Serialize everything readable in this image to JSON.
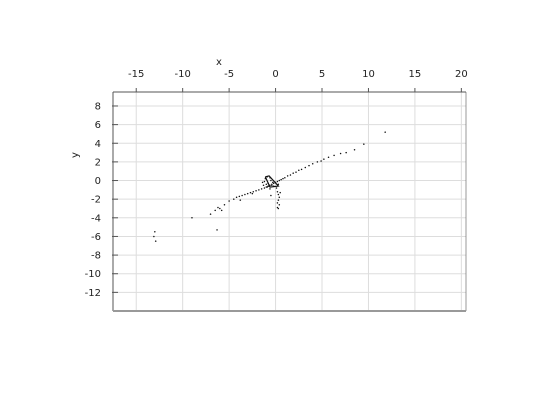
{
  "chart_data": {
    "type": "scatter",
    "title": "",
    "xlabel": "x",
    "ylabel": "y",
    "xlim": [
      -17.5,
      20.5
    ],
    "ylim": [
      -14,
      9.5
    ],
    "grid": true,
    "legend": "none",
    "x_ticks": [
      -15,
      -10,
      -5,
      0,
      5,
      10,
      15,
      20
    ],
    "x_tick_labels": [
      "-15",
      "-10",
      "-5",
      "0",
      "5",
      "10",
      "15",
      "20"
    ],
    "y_ticks": [
      8,
      6,
      4,
      2,
      0,
      -2,
      -4,
      -6,
      -8,
      -10,
      -12
    ],
    "y_tick_labels": [
      "8",
      "6",
      "4",
      "2",
      "0",
      "-2",
      "-4",
      "-6",
      "-8",
      "-10",
      "-12"
    ],
    "x_axis_position": "top",
    "colors": {
      "points": "#111111",
      "grid": "#dddddd",
      "axis": "#555555"
    },
    "series": [
      {
        "x": [
          11.8,
          9.5,
          8.5,
          7.6,
          7.0,
          6.3,
          5.7,
          5.2,
          4.9,
          4.5,
          4.0,
          3.6,
          3.2,
          2.8,
          2.5,
          2.2,
          1.9,
          1.6,
          1.3,
          1.0,
          0.8,
          0.6,
          0.4,
          0.2,
          0.0,
          -0.2,
          -0.4,
          -0.6,
          -0.8,
          -1.0,
          -1.2,
          -1.5,
          -1.8,
          -2.1,
          -2.4,
          -2.7,
          -3.0,
          -3.3,
          -3.6,
          -3.9,
          -4.2,
          -4.5,
          -5.0,
          -5.5,
          -6.0,
          -6.5,
          -7.0,
          -9.0,
          -13.0,
          -13.1,
          -12.9,
          -6.2,
          -6.3,
          -5.8,
          -0.6,
          -0.9,
          -1.1,
          -1.2,
          -1.0,
          -0.7,
          -0.4,
          -0.3,
          -0.5,
          -0.8,
          -1.3,
          -1.4,
          -0.2,
          0.1,
          0.3,
          -0.9,
          -0.6,
          0.2,
          0.3,
          0.4,
          0.3,
          0.2,
          0.5,
          0.4,
          0.2,
          0.3,
          -0.5,
          -2.5,
          -3.8
        ],
        "y": [
          5.2,
          3.9,
          3.3,
          3.0,
          2.9,
          2.7,
          2.5,
          2.3,
          2.1,
          2.0,
          1.8,
          1.6,
          1.4,
          1.2,
          1.1,
          0.9,
          0.8,
          0.6,
          0.5,
          0.3,
          0.2,
          0.1,
          0.0,
          -0.1,
          -0.2,
          -0.3,
          -0.4,
          -0.5,
          -0.6,
          -0.7,
          -0.8,
          -0.9,
          -1.0,
          -1.1,
          -1.2,
          -1.3,
          -1.4,
          -1.5,
          -1.6,
          -1.7,
          -1.8,
          -2.0,
          -2.2,
          -2.6,
          -3.0,
          -3.2,
          -3.6,
          -4.0,
          -5.5,
          -6.0,
          -6.5,
          -2.9,
          -5.3,
          -3.2,
          0.3,
          0.4,
          0.2,
          -0.1,
          -0.4,
          -0.6,
          -0.5,
          -0.2,
          0.0,
          -0.3,
          -0.5,
          -0.2,
          -0.6,
          -0.8,
          -0.4,
          -0.7,
          -0.9,
          -1.2,
          -1.5,
          -1.8,
          -2.1,
          -2.4,
          -1.3,
          -2.6,
          -2.9,
          -3.0,
          -1.6,
          -1.4,
          -2.1
        ]
      }
    ],
    "outline_shape": {
      "x": [
        -1.1,
        -0.7,
        0.3,
        -0.6,
        -1.1
      ],
      "y": [
        0.4,
        0.5,
        -0.6,
        -0.7,
        0.4
      ]
    }
  }
}
